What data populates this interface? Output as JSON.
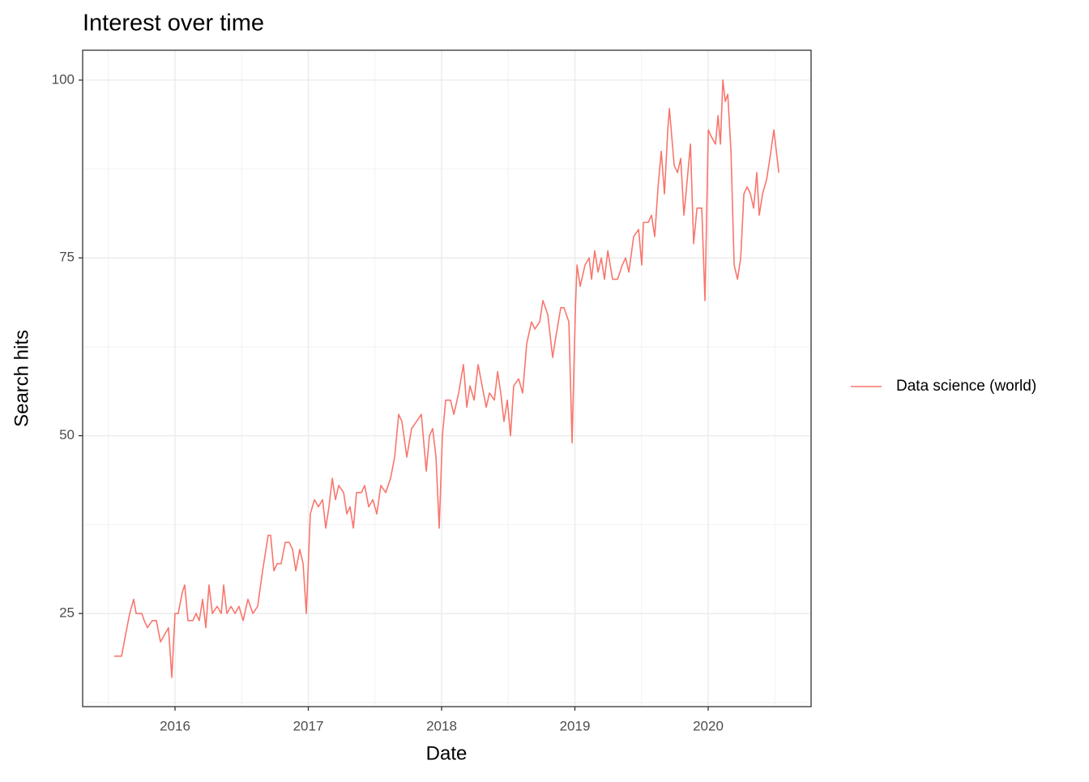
{
  "chart_data": {
    "type": "line",
    "title": "Interest over time",
    "x_label": "Date",
    "y_label": "Search hits",
    "x": [
      2015.544,
      2015.599,
      2015.629,
      2015.66,
      2015.69,
      2015.708,
      2015.751,
      2015.769,
      2015.793,
      2015.83,
      2015.86,
      2015.891,
      2015.921,
      2015.951,
      2015.976,
      2016.0,
      2016.024,
      2016.055,
      2016.073,
      2016.097,
      2016.134,
      2016.158,
      2016.182,
      2016.207,
      2016.231,
      2016.255,
      2016.28,
      2016.316,
      2016.347,
      2016.365,
      2016.389,
      2016.42,
      2016.45,
      2016.48,
      2016.511,
      2016.547,
      2016.584,
      2016.62,
      2016.657,
      2016.699,
      2016.717,
      2016.742,
      2016.766,
      2016.796,
      2016.827,
      2016.857,
      2016.882,
      2016.906,
      2016.936,
      2016.961,
      2016.985,
      2017.015,
      2017.046,
      2017.076,
      2017.107,
      2017.131,
      2017.155,
      2017.18,
      2017.204,
      2017.228,
      2017.265,
      2017.289,
      2017.313,
      2017.338,
      2017.362,
      2017.398,
      2017.423,
      2017.453,
      2017.484,
      2017.514,
      2017.544,
      2017.581,
      2017.617,
      2017.648,
      2017.678,
      2017.702,
      2017.739,
      2017.775,
      2017.812,
      2017.848,
      2017.885,
      2017.909,
      2017.933,
      2017.958,
      2017.982,
      2018.006,
      2018.031,
      2018.067,
      2018.092,
      2018.128,
      2018.164,
      2018.189,
      2018.213,
      2018.244,
      2018.274,
      2018.304,
      2018.335,
      2018.359,
      2018.396,
      2018.42,
      2018.444,
      2018.468,
      2018.493,
      2018.517,
      2018.541,
      2018.578,
      2018.608,
      2018.639,
      2018.675,
      2018.7,
      2018.736,
      2018.76,
      2018.797,
      2018.833,
      2018.858,
      2018.894,
      2018.918,
      2018.955,
      2018.979,
      2019.004,
      2019.016,
      2019.04,
      2019.076,
      2019.107,
      2019.125,
      2019.149,
      2019.174,
      2019.198,
      2019.222,
      2019.247,
      2019.283,
      2019.32,
      2019.356,
      2019.38,
      2019.405,
      2019.441,
      2019.478,
      2019.502,
      2019.514,
      2019.551,
      2019.575,
      2019.599,
      2019.624,
      2019.648,
      2019.672,
      2019.697,
      2019.709,
      2019.745,
      2019.77,
      2019.794,
      2019.818,
      2019.843,
      2019.867,
      2019.891,
      2019.916,
      2019.952,
      2019.976,
      2020.001,
      2020.025,
      2020.055,
      2020.074,
      2020.092,
      2020.11,
      2020.128,
      2020.147,
      2020.171,
      2020.195,
      2020.22,
      2020.244,
      2020.268,
      2020.292,
      2020.317,
      2020.341,
      2020.365,
      2020.383,
      2020.408,
      2020.438,
      2020.463,
      2020.493,
      2020.53
    ],
    "series": [
      {
        "name": "Data science (world)",
        "color": "#F8766D",
        "values": [
          19,
          19,
          22,
          25,
          27,
          25,
          25,
          24,
          23,
          24,
          24,
          21,
          22,
          23,
          16,
          25,
          25,
          28,
          29,
          24,
          24,
          25,
          24,
          27,
          23,
          29,
          25,
          26,
          25,
          29,
          25,
          26,
          25,
          26,
          24,
          27,
          25,
          26,
          31,
          36,
          36,
          31,
          32,
          32,
          35,
          35,
          34,
          31,
          34,
          32,
          25,
          39,
          41,
          40,
          41,
          37,
          40,
          44,
          41,
          43,
          42,
          39,
          40,
          37,
          42,
          42,
          43,
          40,
          41,
          39,
          43,
          42,
          44,
          47,
          53,
          52,
          47,
          51,
          52,
          53,
          45,
          50,
          51,
          47,
          37,
          50,
          55,
          55,
          53,
          56,
          60,
          54,
          57,
          55,
          60,
          57,
          54,
          56,
          55,
          59,
          56,
          52,
          55,
          50,
          57,
          58,
          56,
          63,
          66,
          65,
          66,
          69,
          67,
          61,
          64,
          68,
          68,
          66,
          49,
          68,
          74,
          71,
          74,
          75,
          72,
          76,
          73,
          75,
          72,
          76,
          72,
          72,
          74,
          75,
          73,
          78,
          79,
          74,
          80,
          80,
          81,
          78,
          85,
          90,
          84,
          93,
          96,
          88,
          87,
          89,
          81,
          86,
          91,
          77,
          82,
          82,
          69,
          93,
          92,
          91,
          95,
          91,
          100,
          97,
          98,
          90,
          74,
          72,
          75,
          84,
          85,
          84,
          82,
          87,
          81,
          84,
          86,
          89,
          93,
          87
        ]
      }
    ],
    "xlim": [
      2015.307,
      2020.772
    ],
    "xticks": [
      2016,
      2017,
      2018,
      2019,
      2020
    ],
    "ylim": [
      11.9,
      104.2
    ],
    "yticks": [
      25,
      50,
      75,
      100
    ],
    "grid": true,
    "legend": "right"
  }
}
